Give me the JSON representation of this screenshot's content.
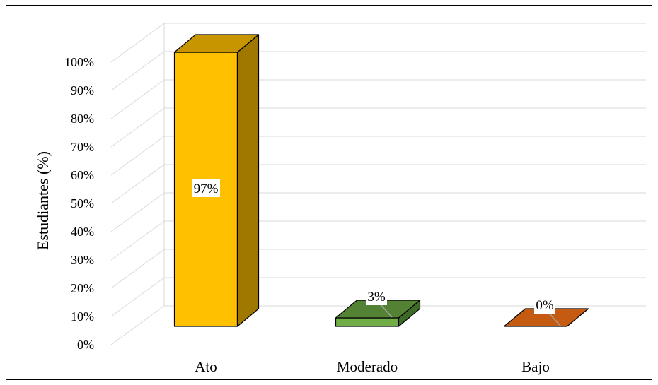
{
  "chart_data": {
    "type": "bar",
    "style": "3d-column",
    "categories": [
      "Ato",
      "Moderado",
      "Bajo"
    ],
    "values": [
      97,
      3,
      0
    ],
    "data_labels": [
      "97%",
      "3%",
      "0%"
    ],
    "bar_colors": [
      {
        "front": "#FFC000",
        "top": "#C79500",
        "side": "#A07800"
      },
      {
        "front": "#70AD47",
        "top": "#548235",
        "side": "#3E6A27"
      },
      {
        "front": "#ED7D31",
        "top": "#C55A11",
        "side": "#A14A0E"
      }
    ],
    "ylabel": "Estudiantes (%)",
    "xlabel": "",
    "ylim": [
      0,
      100
    ],
    "yticks": [
      "0%",
      "10%",
      "20%",
      "30%",
      "40%",
      "50%",
      "60%",
      "70%",
      "80%",
      "90%",
      "100%"
    ],
    "grid": true,
    "legend": "none"
  }
}
